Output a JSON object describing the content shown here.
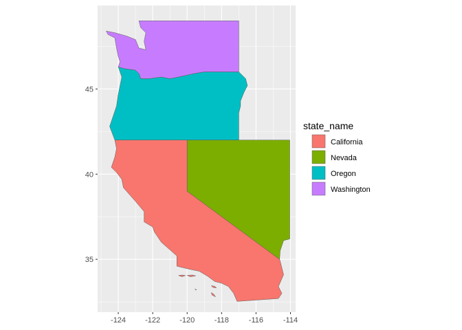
{
  "chart_data": {
    "type": "map",
    "title": "",
    "xlabel": "",
    "ylabel": "",
    "xlim": [
      -125.2,
      -113.7
    ],
    "ylim": [
      31.9,
      49.9
    ],
    "x_ticks": [
      {
        "value": -124,
        "label": "-124"
      },
      {
        "value": -122,
        "label": "-122"
      },
      {
        "value": -120,
        "label": "-120"
      },
      {
        "value": -118,
        "label": "-118"
      },
      {
        "value": -116,
        "label": "-116"
      },
      {
        "value": -114,
        "label": "-114"
      }
    ],
    "y_ticks": [
      {
        "value": 35,
        "label": "35"
      },
      {
        "value": 40,
        "label": "40"
      },
      {
        "value": 45,
        "label": "45"
      }
    ],
    "grid": true,
    "legend": {
      "title": "state_name",
      "placement": "right",
      "entries": [
        {
          "label": "California",
          "color": "#F8766D"
        },
        {
          "label": "Nevada",
          "color": "#7CAE00"
        },
        {
          "label": "Oregon",
          "color": "#00BFC4"
        },
        {
          "label": "Washington",
          "color": "#C77CFF"
        }
      ]
    },
    "regions": [
      {
        "name": "Washington",
        "color": "#C77CFF",
        "coords": [
          [
            -124.7,
            48.4
          ],
          [
            -124.6,
            48.2
          ],
          [
            -124.2,
            48.0
          ],
          [
            -124.1,
            47.4
          ],
          [
            -124.0,
            46.9
          ],
          [
            -123.9,
            46.6
          ],
          [
            -124.0,
            46.3
          ],
          [
            -123.7,
            46.2
          ],
          [
            -123.0,
            46.1
          ],
          [
            -122.8,
            45.9
          ],
          [
            -122.7,
            45.6
          ],
          [
            -122.2,
            45.6
          ],
          [
            -121.5,
            45.7
          ],
          [
            -121.0,
            45.6
          ],
          [
            -120.5,
            45.7
          ],
          [
            -119.6,
            45.9
          ],
          [
            -119.0,
            46.0
          ],
          [
            -118.0,
            46.0
          ],
          [
            -117.0,
            46.0
          ],
          [
            -117.0,
            49.0
          ],
          [
            -122.8,
            49.0
          ],
          [
            -122.7,
            48.6
          ],
          [
            -122.4,
            48.3
          ],
          [
            -122.5,
            47.8
          ],
          [
            -122.4,
            47.3
          ],
          [
            -122.8,
            47.4
          ],
          [
            -123.0,
            47.9
          ],
          [
            -123.5,
            48.1
          ],
          [
            -124.2,
            48.3
          ],
          [
            -124.7,
            48.4
          ]
        ]
      },
      {
        "name": "Oregon",
        "color": "#00BFC4",
        "coords": [
          [
            -124.0,
            46.3
          ],
          [
            -123.8,
            45.7
          ],
          [
            -124.0,
            44.7
          ],
          [
            -124.1,
            44.0
          ],
          [
            -124.3,
            43.4
          ],
          [
            -124.5,
            42.8
          ],
          [
            -124.2,
            42.0
          ],
          [
            -117.0,
            42.0
          ],
          [
            -117.0,
            43.6
          ],
          [
            -116.9,
            44.0
          ],
          [
            -116.9,
            44.3
          ],
          [
            -116.7,
            44.8
          ],
          [
            -116.5,
            45.2
          ],
          [
            -116.6,
            45.6
          ],
          [
            -117.0,
            46.0
          ],
          [
            -118.0,
            46.0
          ],
          [
            -119.0,
            46.0
          ],
          [
            -119.6,
            45.9
          ],
          [
            -120.5,
            45.7
          ],
          [
            -121.0,
            45.6
          ],
          [
            -121.5,
            45.7
          ],
          [
            -122.2,
            45.6
          ],
          [
            -122.7,
            45.6
          ],
          [
            -122.8,
            45.9
          ],
          [
            -123.0,
            46.1
          ],
          [
            -123.7,
            46.2
          ],
          [
            -124.0,
            46.3
          ]
        ]
      },
      {
        "name": "California",
        "color": "#F8766D",
        "coords": [
          [
            -124.2,
            42.0
          ],
          [
            -124.1,
            41.5
          ],
          [
            -124.2,
            41.0
          ],
          [
            -124.4,
            40.4
          ],
          [
            -124.1,
            40.1
          ],
          [
            -123.8,
            39.7
          ],
          [
            -123.7,
            39.2
          ],
          [
            -123.0,
            38.4
          ],
          [
            -122.5,
            37.8
          ],
          [
            -122.5,
            37.2
          ],
          [
            -122.0,
            36.9
          ],
          [
            -121.9,
            36.6
          ],
          [
            -121.5,
            36.0
          ],
          [
            -120.6,
            35.2
          ],
          [
            -120.6,
            34.6
          ],
          [
            -120.0,
            34.45
          ],
          [
            -119.3,
            34.3
          ],
          [
            -118.8,
            34.0
          ],
          [
            -118.4,
            33.7
          ],
          [
            -118.0,
            33.6
          ],
          [
            -117.6,
            33.4
          ],
          [
            -117.3,
            33.0
          ],
          [
            -117.1,
            32.53
          ],
          [
            -114.7,
            32.7
          ],
          [
            -114.5,
            33.0
          ],
          [
            -114.7,
            33.4
          ],
          [
            -114.4,
            34.1
          ],
          [
            -114.6,
            34.9
          ],
          [
            -114.63,
            35.0
          ],
          [
            -120.0,
            39.0
          ],
          [
            -120.0,
            42.0
          ],
          [
            -124.2,
            42.0
          ]
        ]
      },
      {
        "name": "Nevada",
        "color": "#7CAE00",
        "coords": [
          [
            -120.0,
            42.0
          ],
          [
            -114.04,
            42.0
          ],
          [
            -114.04,
            36.2
          ],
          [
            -114.4,
            36.1
          ],
          [
            -114.6,
            35.5
          ],
          [
            -114.63,
            35.0
          ],
          [
            -120.0,
            39.0
          ],
          [
            -120.0,
            42.0
          ]
        ]
      },
      {
        "name": "California",
        "color": "#F8766D",
        "coords": [
          [
            -120.5,
            34.05
          ],
          [
            -120.3,
            34.08
          ],
          [
            -120.1,
            34.05
          ],
          [
            -120.3,
            33.98
          ],
          [
            -120.5,
            34.05
          ]
        ]
      },
      {
        "name": "California",
        "color": "#F8766D",
        "coords": [
          [
            -120.0,
            34.05
          ],
          [
            -119.7,
            34.08
          ],
          [
            -119.5,
            34.03
          ],
          [
            -119.8,
            33.98
          ],
          [
            -120.0,
            34.05
          ]
        ]
      },
      {
        "name": "California",
        "color": "#F8766D",
        "coords": [
          [
            -118.6,
            33.45
          ],
          [
            -118.4,
            33.42
          ],
          [
            -118.3,
            33.32
          ],
          [
            -118.5,
            33.35
          ],
          [
            -118.6,
            33.45
          ]
        ]
      },
      {
        "name": "California",
        "color": "#F8766D",
        "coords": [
          [
            -118.6,
            33.05
          ],
          [
            -118.45,
            32.95
          ],
          [
            -118.35,
            32.8
          ],
          [
            -118.55,
            32.9
          ],
          [
            -118.6,
            33.05
          ]
        ]
      },
      {
        "name": "California",
        "color": "#F8766D",
        "coords": [
          [
            -119.55,
            33.25
          ],
          [
            -119.45,
            33.22
          ],
          [
            -119.5,
            33.19
          ],
          [
            -119.55,
            33.25
          ]
        ]
      }
    ]
  }
}
